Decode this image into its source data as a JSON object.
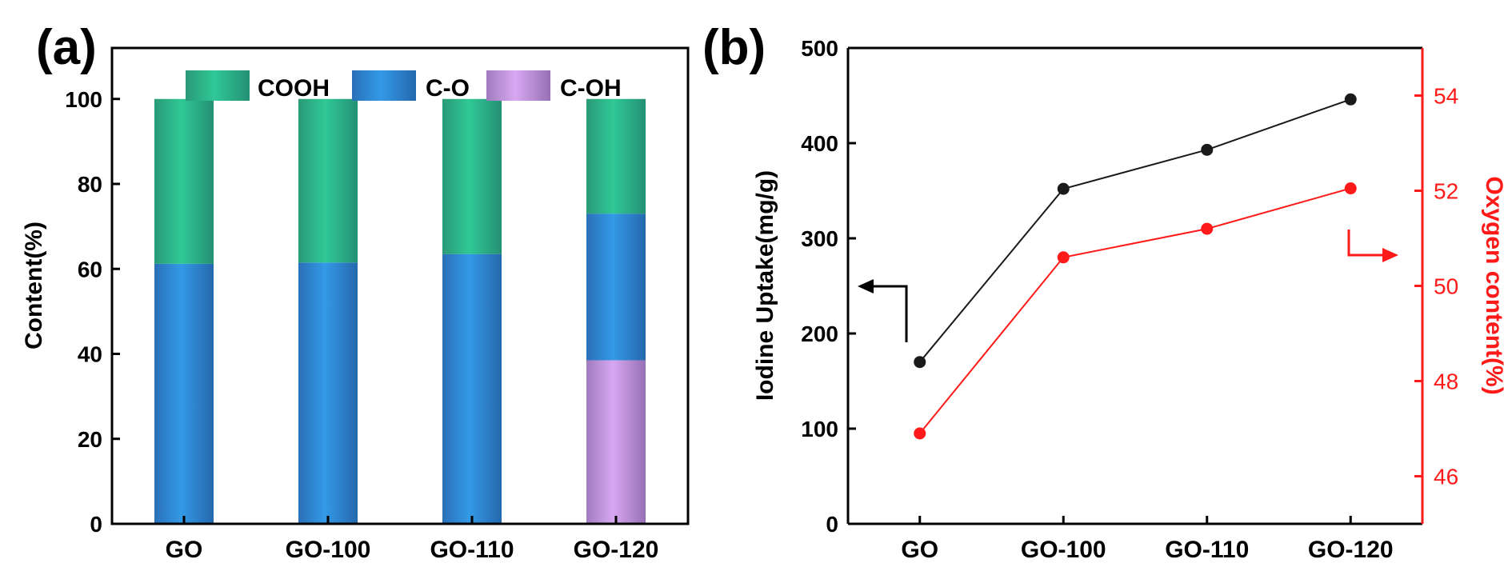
{
  "panel_labels": {
    "a": "(a)",
    "b": "(b)"
  },
  "colors": {
    "cooh": "#2bbf8f",
    "co": "#2c8fde",
    "coh": "#c99ae6",
    "black": "#1a1a1a",
    "red": "#ff1a1a"
  },
  "chart_data": [
    {
      "type": "bar",
      "stacked": true,
      "panel": "(a)",
      "categories": [
        "GO",
        "GO-100",
        "GO-110",
        "GO-120"
      ],
      "series": [
        {
          "name": "C-OH",
          "values": [
            0,
            0,
            0,
            38.5
          ]
        },
        {
          "name": "C-O",
          "values": [
            61.2,
            61.5,
            63.5,
            34.5
          ]
        },
        {
          "name": "COOH",
          "values": [
            38.8,
            38.5,
            36.5,
            27.0
          ]
        }
      ],
      "legend_order": [
        "COOH",
        "C-O",
        "C-OH"
      ],
      "ylabel": "Content(%)",
      "xlabel": "",
      "ylim": [
        0,
        112
      ],
      "yticks": [
        "0",
        "20",
        "40",
        "60",
        "80",
        "100"
      ],
      "legend": "top"
    },
    {
      "type": "line",
      "panel": "(b)",
      "categories": [
        "GO",
        "GO-100",
        "GO-110",
        "GO-120"
      ],
      "series": [
        {
          "name": "Iodine Uptake",
          "axis": "left",
          "values": [
            170,
            352,
            393,
            446
          ]
        },
        {
          "name": "Oxygen content",
          "axis": "right",
          "values": [
            46.9,
            50.6,
            51.2,
            52.05
          ]
        }
      ],
      "ylabel": "Iodine Uptake(mg/g)",
      "ylabel_right": "Oxygen content(%)",
      "ylim": [
        0,
        500
      ],
      "ylim_right": [
        45,
        55
      ],
      "yticks": [
        "0",
        "100",
        "200",
        "300",
        "400",
        "500"
      ],
      "yticks_right": [
        "46",
        "48",
        "50",
        "52",
        "54"
      ]
    }
  ]
}
